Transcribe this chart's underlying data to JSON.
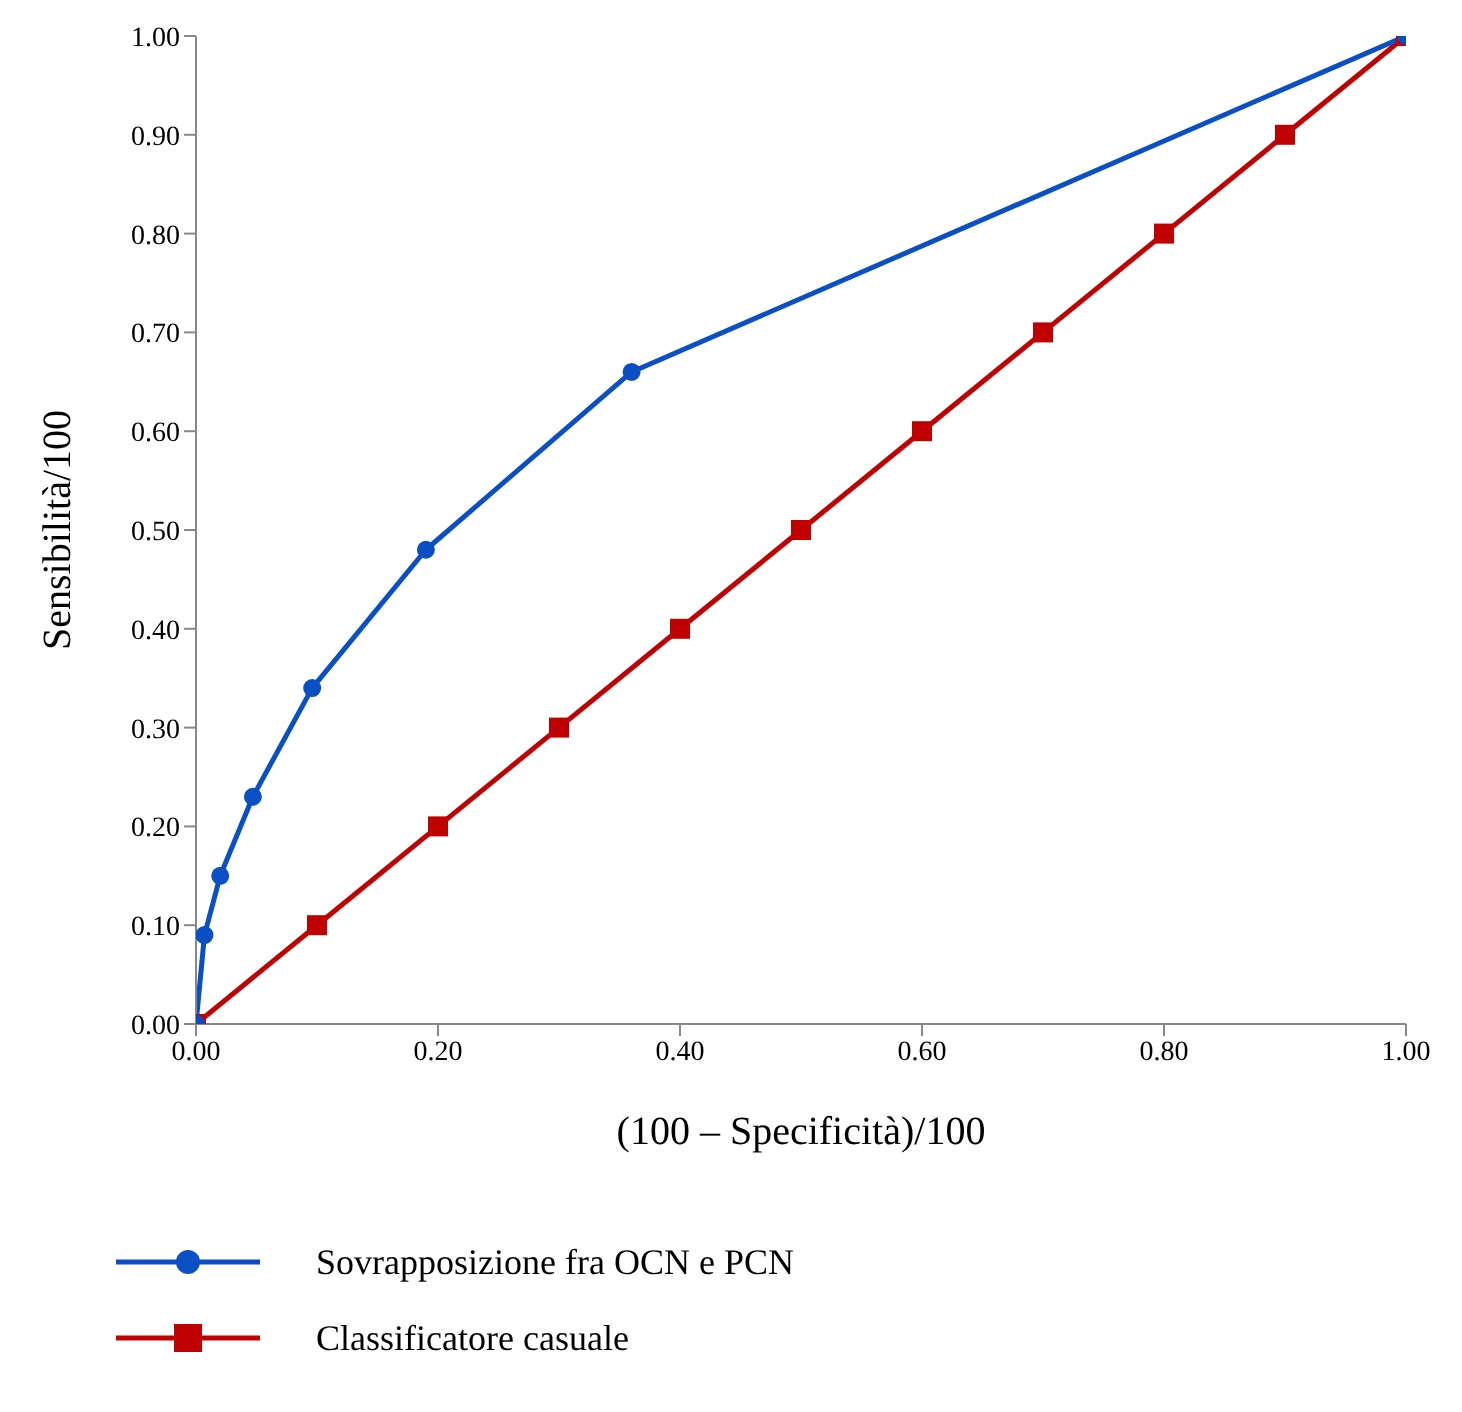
{
  "chart_data": {
    "type": "line",
    "xlabel": "(100 – Specificità)/100",
    "ylabel": "Sensibilità/100",
    "xlim": [
      0,
      1
    ],
    "xticks": [
      {
        "value": 0,
        "label": "0.00"
      },
      {
        "value": 0.2,
        "label": "0.20"
      },
      {
        "value": 0.4,
        "label": "0.40"
      },
      {
        "value": 0.6,
        "label": "0.60"
      },
      {
        "value": 0.8,
        "label": "0.80"
      },
      {
        "value": 1,
        "label": "1.00"
      }
    ],
    "ylim": [
      0,
      1
    ],
    "yticks": [
      {
        "value": 0,
        "label": "0.00"
      },
      {
        "value": 0.1,
        "label": "0.10"
      },
      {
        "value": 0.2,
        "label": "0.20"
      },
      {
        "value": 0.3,
        "label": "0.30"
      },
      {
        "value": 0.4,
        "label": "0.40"
      },
      {
        "value": 0.5,
        "label": "0.50"
      },
      {
        "value": 0.6,
        "label": "0.60"
      },
      {
        "value": 0.7,
        "label": "0.70"
      },
      {
        "value": 0.8,
        "label": "0.80"
      },
      {
        "value": 0.9,
        "label": "0.90"
      },
      {
        "value": 1,
        "label": "1.00"
      }
    ],
    "grid": false,
    "legend": "bottom",
    "line_style": "solid",
    "series": [
      {
        "name": "Sovrapposizione fra OCN e PCN",
        "color": "#0a4fc4",
        "marker": "circle",
        "x": [
          0,
          0.007,
          0.02,
          0.047,
          0.096,
          0.19,
          0.36,
          1
        ],
        "values": [
          0,
          0.09,
          0.15,
          0.23,
          0.34,
          0.48,
          0.66,
          1
        ]
      },
      {
        "name": "Classificatore casuale",
        "color": "#c00000",
        "marker": "square",
        "x": [
          0,
          0.1,
          0.2,
          0.3,
          0.4,
          0.5,
          0.6,
          0.7,
          0.8,
          0.9,
          1
        ],
        "values": [
          0,
          0.1,
          0.2,
          0.3,
          0.4,
          0.5,
          0.6,
          0.7,
          0.8,
          0.9,
          1
        ]
      }
    ]
  }
}
